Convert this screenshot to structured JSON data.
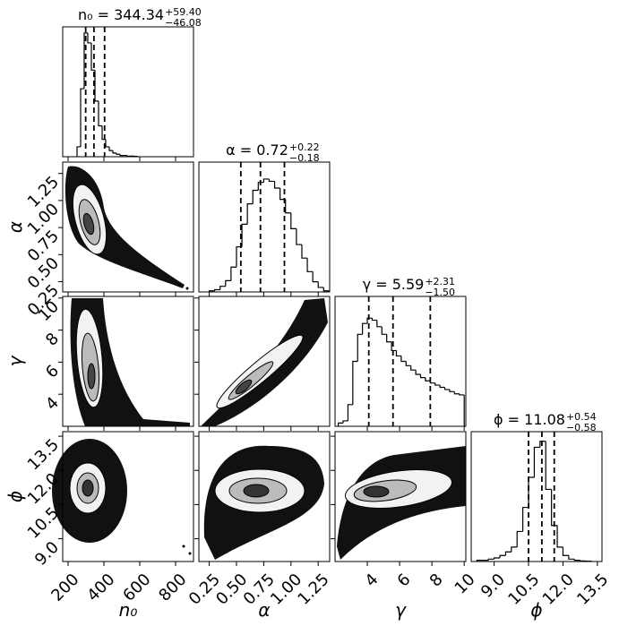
{
  "chart_data": {
    "type": "corner",
    "parameters": [
      {
        "label": "n₀",
        "title": "n₀ = 344.34",
        "upper": "+59.40",
        "lower": "−46.08",
        "quantiles": [
          298.26,
          344.34,
          403.74
        ],
        "range": [
          170,
          900
        ],
        "ticks": [
          200,
          400,
          600,
          800
        ],
        "ylim": [
          0,
          105
        ],
        "bins": [
          250,
          270,
          290,
          310,
          330,
          350,
          370,
          390,
          410,
          430,
          450,
          470,
          490,
          510,
          530,
          550,
          570,
          590
        ],
        "counts": [
          8,
          55,
          100,
          92,
          70,
          45,
          25,
          14,
          8,
          5,
          3,
          2,
          1,
          1,
          0.5,
          0.5,
          0.3
        ]
      },
      {
        "label": "α",
        "title": "α = 0.72",
        "upper": "+0.22",
        "lower": "−0.18",
        "quantiles": [
          0.54,
          0.72,
          0.94
        ],
        "range": [
          0.155,
          1.355
        ],
        "ticks": [
          0.25,
          {
            "value": 0.5,
            "label": "0.50"
          },
          0.75,
          {
            "value": 1,
            "label": "1.00"
          },
          1.25
        ],
        "ylim": [
          0,
          115
        ],
        "bins": [
          0.25,
          0.3,
          0.35,
          0.4,
          0.45,
          0.5,
          0.55,
          0.6,
          0.65,
          0.7,
          0.75,
          0.8,
          0.85,
          0.9,
          0.95,
          1.0,
          1.05,
          1.1,
          1.15,
          1.2,
          1.25,
          1.3,
          1.35
        ],
        "counts": [
          1,
          2,
          5,
          10,
          22,
          40,
          60,
          78,
          90,
          97,
          100,
          98,
          92,
          82,
          70,
          56,
          42,
          30,
          18,
          9,
          4,
          1
        ]
      },
      {
        "label": "γ",
        "title": "γ = 5.59",
        "upper": "+2.31",
        "lower": "−1.50",
        "quantiles": [
          4.09,
          5.59,
          7.9
        ],
        "range": [
          2.0,
          10.1
        ],
        "ticks": [
          4,
          6,
          8,
          10
        ],
        "ylim": [
          0,
          120
        ],
        "bins": [
          2.2,
          2.5,
          2.8,
          3.1,
          3.4,
          3.7,
          4.0,
          4.3,
          4.6,
          4.9,
          5.2,
          5.5,
          5.8,
          6.1,
          6.4,
          6.7,
          7.0,
          7.3,
          7.6,
          7.9,
          8.2,
          8.5,
          8.8,
          9.1,
          9.4,
          9.7,
          10.0
        ],
        "counts": [
          3,
          5,
          20,
          60,
          85,
          95,
          100,
          98,
          92,
          85,
          78,
          70,
          65,
          60,
          56,
          52,
          48,
          45,
          42,
          40,
          38,
          36,
          34,
          32,
          30,
          29
        ]
      },
      {
        "label": "ϕ",
        "title": "ϕ = 11.08",
        "upper": "+0.54",
        "lower": "−0.58",
        "quantiles": [
          10.5,
          11.08,
          11.62
        ],
        "range": [
          8.0,
          13.7
        ],
        "ticks": [
          {
            "value": 9,
            "label": "9.0"
          },
          10.5,
          {
            "value": 12,
            "label": "12.0"
          },
          13.5
        ],
        "ylim": [
          0,
          108
        ],
        "bins": [
          8.25,
          8.5,
          8.75,
          9.0,
          9.25,
          9.5,
          9.75,
          10.0,
          10.25,
          10.5,
          10.75,
          11.0,
          11.25,
          11.5,
          11.75,
          12.0,
          12.25,
          12.5,
          12.75,
          13.0,
          13.25
        ],
        "counts": [
          1,
          1,
          2,
          3,
          5,
          8,
          12,
          25,
          45,
          70,
          95,
          100,
          60,
          30,
          12,
          5,
          2,
          1,
          0.5,
          0.3
        ]
      }
    ]
  }
}
